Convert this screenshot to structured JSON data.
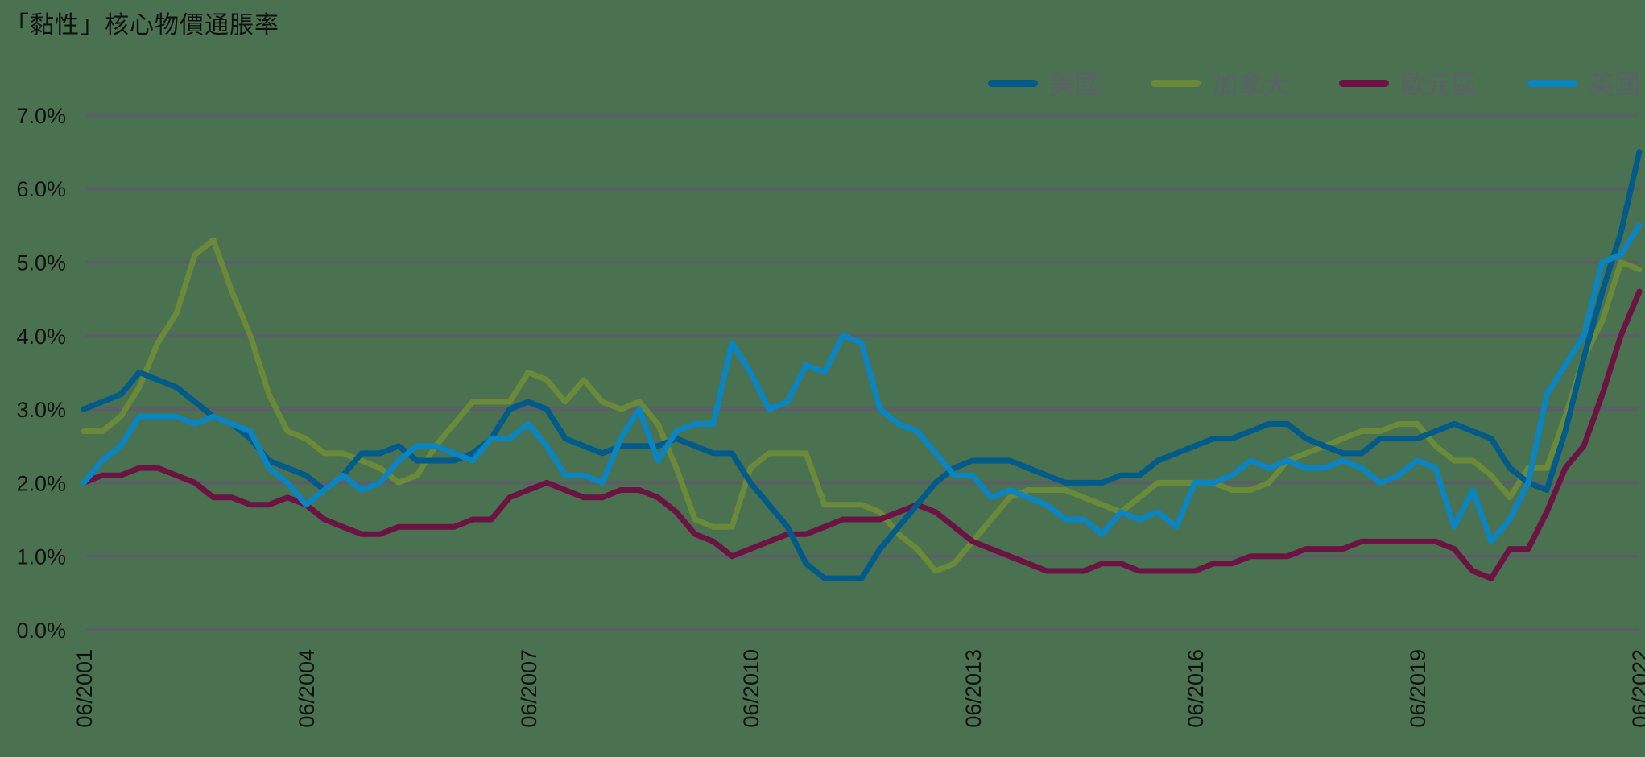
{
  "title": "「黏性」核心物價通脹率",
  "legend": [
    {
      "name": "美國",
      "color": "#005a8a"
    },
    {
      "name": "加拿大",
      "color": "#6a8a3a"
    },
    {
      "name": "歐元區",
      "color": "#6b1443"
    },
    {
      "name": "英國",
      "color": "#0b84c2"
    }
  ],
  "chart_data": {
    "type": "line",
    "title": "「黏性」核心物價通脹率",
    "xlabel": "",
    "ylabel": "",
    "ylim": [
      0,
      7
    ],
    "y_ticks": [
      "0.0%",
      "1.0%",
      "2.0%",
      "3.0%",
      "4.0%",
      "5.0%",
      "6.0%",
      "7.0%"
    ],
    "x_ticks": [
      "06/2001",
      "06/2004",
      "06/2007",
      "06/2010",
      "06/2013",
      "06/2016",
      "06/2019",
      "06/2022"
    ],
    "grid": true,
    "legend_position": "top-right",
    "frequency": "quarterly, 06/2001 to 06/2022",
    "series": [
      {
        "name": "美國",
        "color": "#005a8a",
        "values": [
          3.0,
          3.1,
          3.2,
          3.5,
          3.4,
          3.3,
          3.1,
          2.9,
          2.8,
          2.6,
          2.3,
          2.2,
          2.1,
          1.9,
          2.1,
          2.4,
          2.4,
          2.5,
          2.3,
          2.3,
          2.3,
          2.4,
          2.6,
          3.0,
          3.1,
          3.0,
          2.6,
          2.5,
          2.4,
          2.5,
          2.5,
          2.5,
          2.6,
          2.5,
          2.4,
          2.4,
          2.0,
          1.7,
          1.4,
          0.9,
          0.7,
          0.7,
          0.7,
          1.1,
          1.4,
          1.7,
          2.0,
          2.2,
          2.3,
          2.3,
          2.3,
          2.2,
          2.1,
          2.0,
          2.0,
          2.0,
          2.1,
          2.1,
          2.3,
          2.4,
          2.5,
          2.6,
          2.6,
          2.7,
          2.8,
          2.8,
          2.6,
          2.5,
          2.4,
          2.4,
          2.6,
          2.6,
          2.6,
          2.7,
          2.8,
          2.7,
          2.6,
          2.2,
          2.0,
          1.9,
          2.7,
          3.7,
          4.6,
          5.4,
          6.5
        ]
      },
      {
        "name": "加拿大",
        "color": "#6a8a3a",
        "values": [
          2.7,
          2.7,
          2.9,
          3.3,
          3.9,
          4.3,
          5.1,
          5.3,
          4.6,
          4.0,
          3.2,
          2.7,
          2.6,
          2.4,
          2.4,
          2.3,
          2.2,
          2.0,
          2.1,
          2.5,
          2.8,
          3.1,
          3.1,
          3.1,
          3.5,
          3.4,
          3.1,
          3.4,
          3.1,
          3.0,
          3.1,
          2.8,
          2.2,
          1.5,
          1.4,
          1.4,
          2.2,
          2.4,
          2.4,
          2.4,
          1.7,
          1.7,
          1.7,
          1.6,
          1.3,
          1.1,
          0.8,
          0.9,
          1.2,
          1.5,
          1.8,
          1.9,
          1.9,
          1.9,
          1.8,
          1.7,
          1.6,
          1.8,
          2.0,
          2.0,
          2.0,
          2.0,
          1.9,
          1.9,
          2.0,
          2.3,
          2.4,
          2.5,
          2.6,
          2.7,
          2.7,
          2.8,
          2.8,
          2.5,
          2.3,
          2.3,
          2.1,
          1.8,
          2.2,
          2.2,
          2.9,
          3.7,
          4.2,
          5.0,
          4.9
        ]
      },
      {
        "name": "歐元區",
        "color": "#6b1443",
        "values": [
          2.0,
          2.1,
          2.1,
          2.2,
          2.2,
          2.1,
          2.0,
          1.8,
          1.8,
          1.7,
          1.7,
          1.8,
          1.7,
          1.5,
          1.4,
          1.3,
          1.3,
          1.4,
          1.4,
          1.4,
          1.4,
          1.5,
          1.5,
          1.8,
          1.9,
          2.0,
          1.9,
          1.8,
          1.8,
          1.9,
          1.9,
          1.8,
          1.6,
          1.3,
          1.2,
          1.0,
          1.1,
          1.2,
          1.3,
          1.3,
          1.4,
          1.5,
          1.5,
          1.5,
          1.6,
          1.7,
          1.6,
          1.4,
          1.2,
          1.1,
          1.0,
          0.9,
          0.8,
          0.8,
          0.8,
          0.9,
          0.9,
          0.8,
          0.8,
          0.8,
          0.8,
          0.9,
          0.9,
          1.0,
          1.0,
          1.0,
          1.1,
          1.1,
          1.1,
          1.2,
          1.2,
          1.2,
          1.2,
          1.2,
          1.1,
          0.8,
          0.7,
          1.1,
          1.1,
          1.6,
          2.2,
          2.5,
          3.2,
          4.0,
          4.6
        ]
      },
      {
        "name": "英國",
        "color": "#0b84c2",
        "values": [
          2.0,
          2.3,
          2.5,
          2.9,
          2.9,
          2.9,
          2.8,
          2.9,
          2.8,
          2.7,
          2.2,
          2.0,
          1.7,
          1.9,
          2.1,
          1.9,
          2.0,
          2.3,
          2.5,
          2.5,
          2.4,
          2.3,
          2.6,
          2.6,
          2.8,
          2.5,
          2.1,
          2.1,
          2.0,
          2.6,
          3.0,
          2.3,
          2.7,
          2.8,
          2.8,
          3.9,
          3.5,
          3.0,
          3.1,
          3.6,
          3.5,
          4.0,
          3.9,
          3.0,
          2.8,
          2.7,
          2.4,
          2.1,
          2.1,
          1.8,
          1.9,
          1.8,
          1.7,
          1.5,
          1.5,
          1.3,
          1.6,
          1.5,
          1.6,
          1.4,
          2.0,
          2.0,
          2.1,
          2.3,
          2.2,
          2.3,
          2.2,
          2.2,
          2.3,
          2.2,
          2.0,
          2.1,
          2.3,
          2.2,
          1.4,
          1.9,
          1.2,
          1.5,
          2.0,
          3.2,
          3.6,
          4.0,
          5.0,
          5.1,
          5.5
        ]
      }
    ]
  }
}
